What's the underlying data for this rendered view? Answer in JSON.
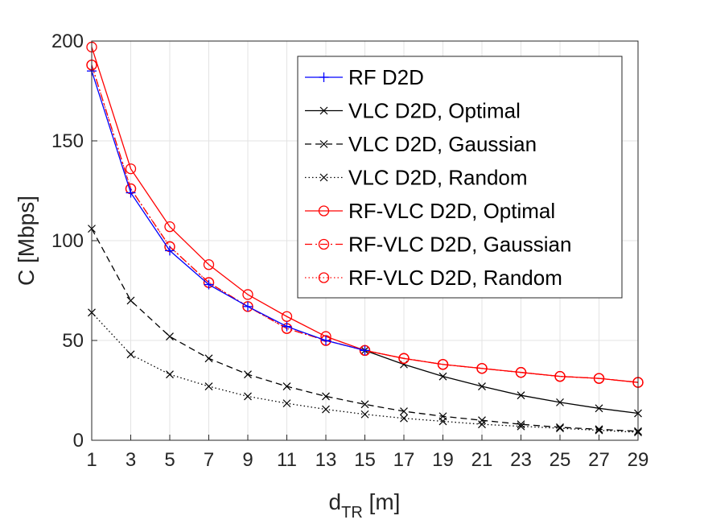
{
  "chart_data": {
    "type": "line",
    "xlabel": "d",
    "xlabel_subscript": "TR",
    "xlabel_unit": " [m]",
    "ylabel": "C [Mbps]",
    "xlim": [
      1,
      29
    ],
    "ylim": [
      0,
      200
    ],
    "grid": true,
    "legend_position": "top-right",
    "x_ticks": [
      "1",
      "3",
      "5",
      "7",
      "9",
      "11",
      "13",
      "15",
      "17",
      "19",
      "21",
      "23",
      "25",
      "27",
      "29"
    ],
    "y_ticks": [
      "0",
      "50",
      "100",
      "150",
      "200"
    ],
    "x": [
      1,
      3,
      5,
      7,
      9,
      11,
      13,
      15,
      17,
      19,
      21,
      23,
      25,
      27,
      29
    ],
    "series": [
      {
        "name": "RF D2D",
        "color": "#0000ff",
        "line": "solid",
        "marker": "plus",
        "values": [
          185,
          124,
          95,
          78,
          67,
          57,
          50,
          45,
          null,
          null,
          null,
          null,
          null,
          null,
          null
        ]
      },
      {
        "name": "VLC D2D, Optimal",
        "color": "#000000",
        "line": "solid",
        "marker": "x",
        "values": [
          null,
          null,
          null,
          null,
          null,
          null,
          null,
          45,
          38,
          32,
          27,
          22.5,
          19,
          16,
          13.5
        ]
      },
      {
        "name": "VLC D2D, Gaussian",
        "color": "#000000",
        "line": "dashed",
        "marker": "x",
        "values": [
          106,
          70,
          52,
          41,
          33,
          27,
          22,
          18,
          14.5,
          12,
          10,
          8,
          6.5,
          5.5,
          4.5
        ]
      },
      {
        "name": "VLC D2D, Random",
        "color": "#000000",
        "line": "dotted",
        "marker": "x",
        "values": [
          64,
          43,
          33,
          27,
          22,
          18.5,
          15.5,
          13,
          11,
          9.5,
          8,
          7,
          6,
          5,
          4
        ]
      },
      {
        "name": "RF-VLC D2D, Optimal",
        "color": "#ff0000",
        "line": "solid",
        "marker": "circle",
        "values": [
          197,
          136,
          107,
          88,
          73,
          62,
          52,
          45,
          41,
          38,
          36,
          34,
          32,
          31,
          29
        ]
      },
      {
        "name": "RF-VLC D2D, Gaussian",
        "color": "#ff0000",
        "line": "dashdot",
        "marker": "circle",
        "values": [
          188,
          126,
          97,
          79,
          67,
          56,
          50,
          45,
          41,
          38,
          36,
          34,
          32,
          31,
          29
        ]
      },
      {
        "name": "RF-VLC D2D, Random",
        "color": "#ff0000",
        "line": "dotted",
        "marker": "circle",
        "values": [
          188,
          126,
          97,
          79,
          67,
          56,
          50,
          45,
          41,
          38,
          36,
          34,
          32,
          31,
          29
        ]
      }
    ]
  }
}
